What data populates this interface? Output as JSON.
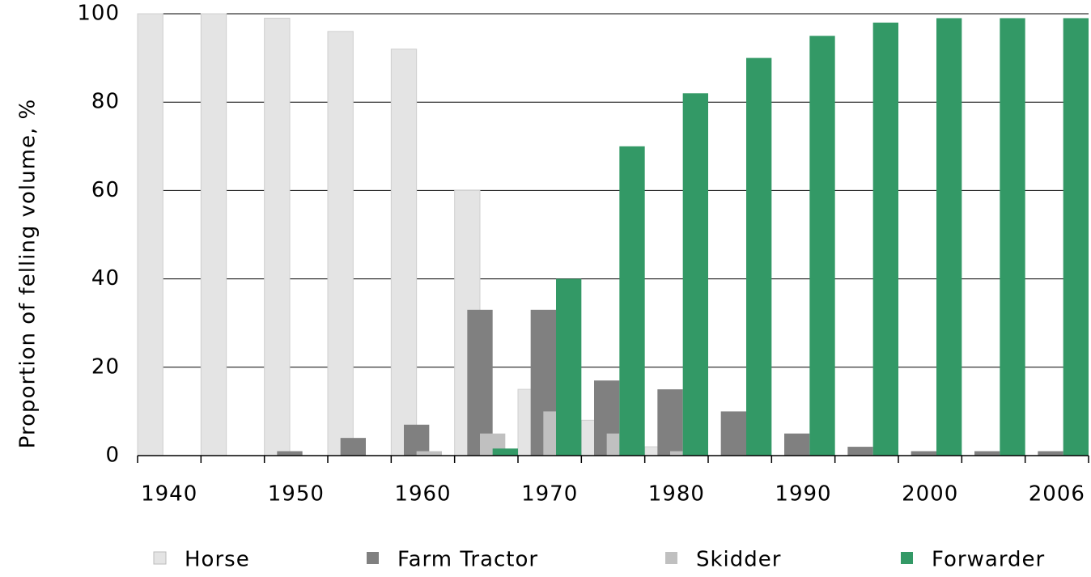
{
  "chart_data": {
    "type": "bar",
    "y_label": "Proportion of felling volume, %",
    "categories": [
      "1940",
      null,
      "1950",
      null,
      "1960",
      null,
      "1970",
      null,
      "1980",
      null,
      "1990",
      null,
      "2000",
      null,
      "2006"
    ],
    "series": [
      {
        "name": "Horse",
        "color": "#e4e4e4",
        "values": [
          100,
          100,
          99,
          96,
          92,
          60,
          15,
          8,
          2,
          0,
          0,
          0,
          0,
          0,
          0
        ]
      },
      {
        "name": "Farm Tractor",
        "color": "#808080",
        "values": [
          0,
          0,
          1,
          4,
          7,
          33,
          33,
          17,
          15,
          10,
          5,
          2,
          1,
          1,
          1
        ]
      },
      {
        "name": "Skidder",
        "color": "#c0c0c0",
        "values": [
          0,
          0,
          0,
          0,
          1,
          5,
          10,
          5,
          1,
          0,
          0,
          0,
          0,
          0,
          0
        ]
      },
      {
        "name": "Forwarder",
        "color": "#339966",
        "values": [
          0,
          0,
          0,
          0,
          0,
          1.6,
          40,
          70,
          82,
          90,
          95,
          98,
          99,
          99,
          99
        ]
      }
    ],
    "ylim": [
      0,
      100
    ],
    "yticks": [
      0,
      20,
      40,
      60,
      80,
      100
    ],
    "grid": true
  }
}
